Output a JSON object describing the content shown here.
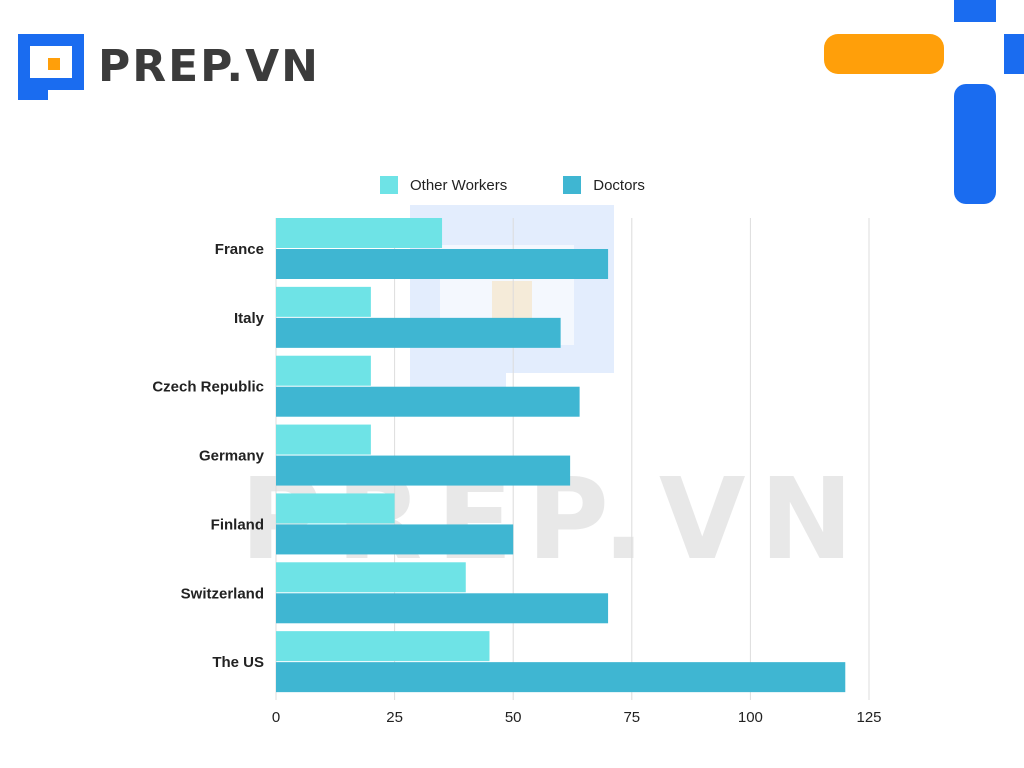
{
  "brand": {
    "name": "PREP.VN",
    "watermark": "PREP.VN",
    "colors": {
      "blue": "#1a6cf0",
      "orange": "#ff9f0a",
      "text": "#3b3b3b"
    }
  },
  "chart_data": {
    "type": "bar",
    "orientation": "horizontal",
    "categories": [
      "France",
      "Italy",
      "Czech Republic",
      "Germany",
      "Finland",
      "Switzerland",
      "The US"
    ],
    "series": [
      {
        "name": "Other Workers",
        "color": "#6ee3e6",
        "values": [
          35,
          20,
          20,
          20,
          25,
          40,
          45
        ]
      },
      {
        "name": "Doctors",
        "color": "#3fb6d2",
        "values": [
          70,
          60,
          64,
          62,
          50,
          70,
          120
        ]
      }
    ],
    "xlim": [
      0,
      125
    ],
    "xticks": [
      "0",
      "25",
      "50",
      "75",
      "100",
      "125"
    ],
    "xlabel": "",
    "ylabel": "",
    "grid": "vertical",
    "legend_position": "top"
  }
}
